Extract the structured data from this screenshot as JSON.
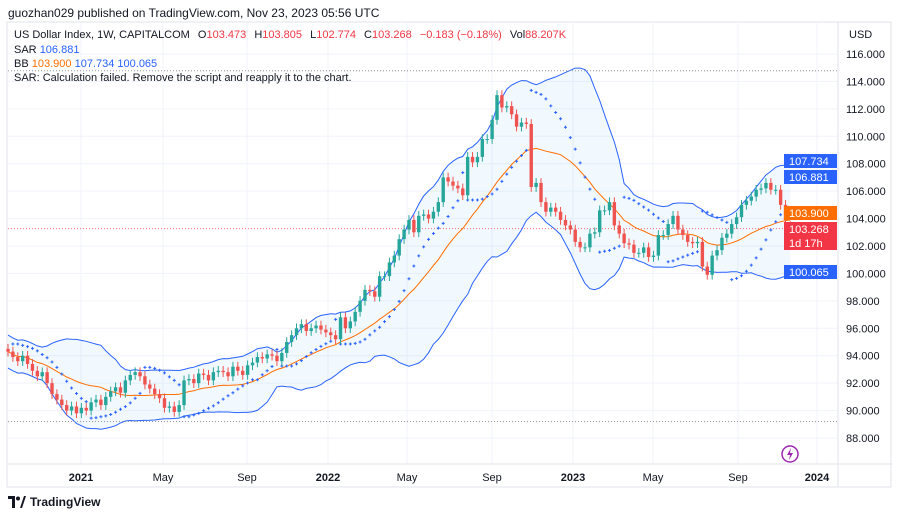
{
  "published": "guozhan029 published on TradingView.com, Nov 23, 2023 05:56 UTC",
  "legend": {
    "symbol": "US Dollar Index, 1W, CAPITALCOM",
    "o_label": "O",
    "o": "103.473",
    "h_label": "H",
    "h": "103.805",
    "l_label": "L",
    "l": "102.774",
    "c_label": "C",
    "c": "103.268",
    "change": "−0.183 (−0.18%)",
    "vol_label": "Vol",
    "vol": "88.207K",
    "sar_label": "SAR",
    "sar": "106.881",
    "bb_label": "BB",
    "bb_basis": "103.900",
    "bb_upper": "107.734",
    "bb_lower": "100.065",
    "error": "SAR: Calculation failed. Remove the script and reapply it to the chart."
  },
  "currency": "USD",
  "footer_logo": "TradingView",
  "colors": {
    "up": "#26a69a",
    "down": "#ef5350",
    "bb_band": "#2962ff",
    "bb_basis": "#ff6d00",
    "sar": "#2962ff",
    "last_price": "#f23645",
    "bb_fill": "#2196f3",
    "icon": "#9c27b0"
  },
  "chart_data": {
    "type": "candlestick",
    "title": "US Dollar Index, 1W, CAPITALCOM",
    "timeframe": "1W",
    "ylim": [
      86.5,
      117
    ],
    "y_ticks": [
      "88.000",
      "90.000",
      "92.000",
      "94.000",
      "96.000",
      "98.000",
      "100.000",
      "102.000",
      "104.000",
      "106.000",
      "108.000",
      "110.000",
      "112.000",
      "114.000",
      "116.000"
    ],
    "x_ticks": [
      {
        "label": "2021",
        "bold": true
      },
      {
        "label": "May",
        "bold": false
      },
      {
        "label": "Sep",
        "bold": false
      },
      {
        "label": "2022",
        "bold": true
      },
      {
        "label": "May",
        "bold": false
      },
      {
        "label": "Sep",
        "bold": false
      },
      {
        "label": "2023",
        "bold": true
      },
      {
        "label": "May",
        "bold": false
      },
      {
        "label": "Sep",
        "bold": false
      },
      {
        "label": "2024",
        "bold": true
      }
    ],
    "last_candle": {
      "open": 103.473,
      "high": 103.805,
      "low": 102.774,
      "close": 103.268
    },
    "range_high": 114.78,
    "range_low": 89.2,
    "close": [
      94.3,
      93.9,
      93.6,
      94.0,
      93.4,
      92.9,
      92.5,
      92.8,
      92.0,
      91.2,
      90.8,
      90.4,
      90.0,
      90.3,
      89.8,
      90.2,
      90.0,
      90.6,
      90.8,
      90.4,
      91.0,
      91.4,
      91.7,
      91.3,
      92.2,
      92.6,
      92.8,
      92.5,
      91.9,
      91.6,
      91.2,
      90.9,
      90.2,
      90.3,
      89.9,
      90.4,
      92.2,
      92.3,
      92.0,
      92.7,
      92.6,
      92.2,
      92.8,
      92.9,
      92.8,
      92.5,
      93.2,
      92.9,
      92.6,
      93.3,
      93.5,
      93.9,
      93.8,
      94.1,
      94.0,
      93.6,
      94.2,
      95.0,
      95.5,
      96.0,
      96.3,
      95.8,
      96.0,
      96.2,
      95.9,
      95.7,
      95.5,
      95.2,
      96.8,
      96.0,
      96.5,
      97.2,
      98.0,
      98.8,
      98.7,
      98.3,
      99.8,
      99.8,
      100.8,
      101.3,
      102.5,
      103.2,
      103.9,
      103.0,
      104.2,
      104.3,
      104.0,
      104.5,
      105.2,
      107.0,
      106.7,
      106.4,
      106.2,
      105.7,
      108.5,
      108.1,
      108.5,
      109.8,
      109.8,
      111.2,
      113.0,
      112.1,
      112.2,
      111.6,
      110.7,
      111.0,
      110.9,
      106.3,
      106.6,
      105.2,
      104.5,
      104.8,
      104.5,
      103.9,
      103.5,
      103.2,
      102.3,
      101.9,
      101.9,
      102.9,
      103.0,
      104.6,
      104.6,
      105.2,
      103.5,
      102.9,
      102.2,
      102.1,
      101.5,
      101.5,
      101.9,
      101.2,
      101.3,
      102.8,
      102.8,
      103.6,
      104.2,
      103.2,
      102.8,
      102.3,
      102.2,
      102.3,
      100.5,
      99.9,
      101.3,
      101.7,
      102.6,
      102.9,
      103.6,
      104.1,
      105.0,
      105.3,
      105.6,
      106.1,
      106.2,
      106.6,
      106.1,
      106.1,
      105.0,
      103.9,
      103.268
    ],
    "indicators": {
      "bollinger_bands": {
        "basis": 103.9,
        "upper": 107.734,
        "lower": 100.065
      },
      "parabolic_sar": 106.881
    },
    "price_tags": [
      {
        "value": "107.734",
        "color": "#2962ff"
      },
      {
        "value": "106.881",
        "color": "#2962ff"
      },
      {
        "value": "103.900",
        "color": "#ff6d00"
      },
      {
        "value": "103.268",
        "color": "#f23645",
        "countdown": "1d 17h"
      },
      {
        "value": "100.065",
        "color": "#2962ff"
      }
    ]
  }
}
